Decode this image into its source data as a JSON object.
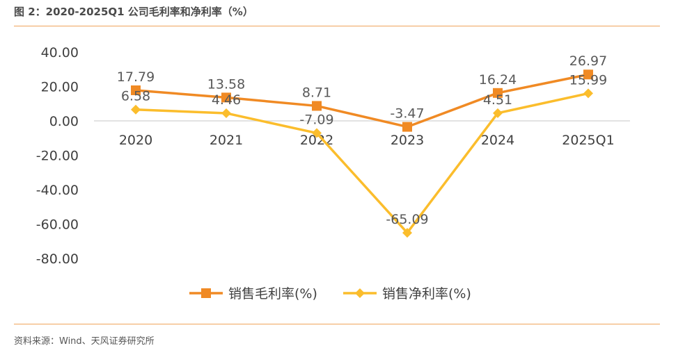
{
  "figure": {
    "title": "图 2：2020-2025Q1 公司毛利率和净利率（%）",
    "source": "资料来源：Wind、天风证券研究所"
  },
  "chart_data": {
    "type": "line",
    "categories": [
      "2020",
      "2021",
      "2022",
      "2023",
      "2024",
      "2025Q1"
    ],
    "series": [
      {
        "name": "销售毛利率(%)",
        "values": [
          17.79,
          13.58,
          8.71,
          -3.47,
          16.24,
          26.97
        ],
        "color": "#f08a24",
        "marker": "square"
      },
      {
        "name": "销售净利率(%)",
        "values": [
          6.58,
          4.46,
          -7.09,
          -65.09,
          4.51,
          15.99
        ],
        "color": "#fbbd2c",
        "marker": "diamond"
      }
    ],
    "y_ticks": [
      "40.00",
      "20.00",
      "0.00",
      "-20.00",
      "-40.00",
      "-60.00",
      "-80.00"
    ],
    "ylim": [
      -80,
      40
    ],
    "grid": false,
    "legend": "bottom-center"
  }
}
